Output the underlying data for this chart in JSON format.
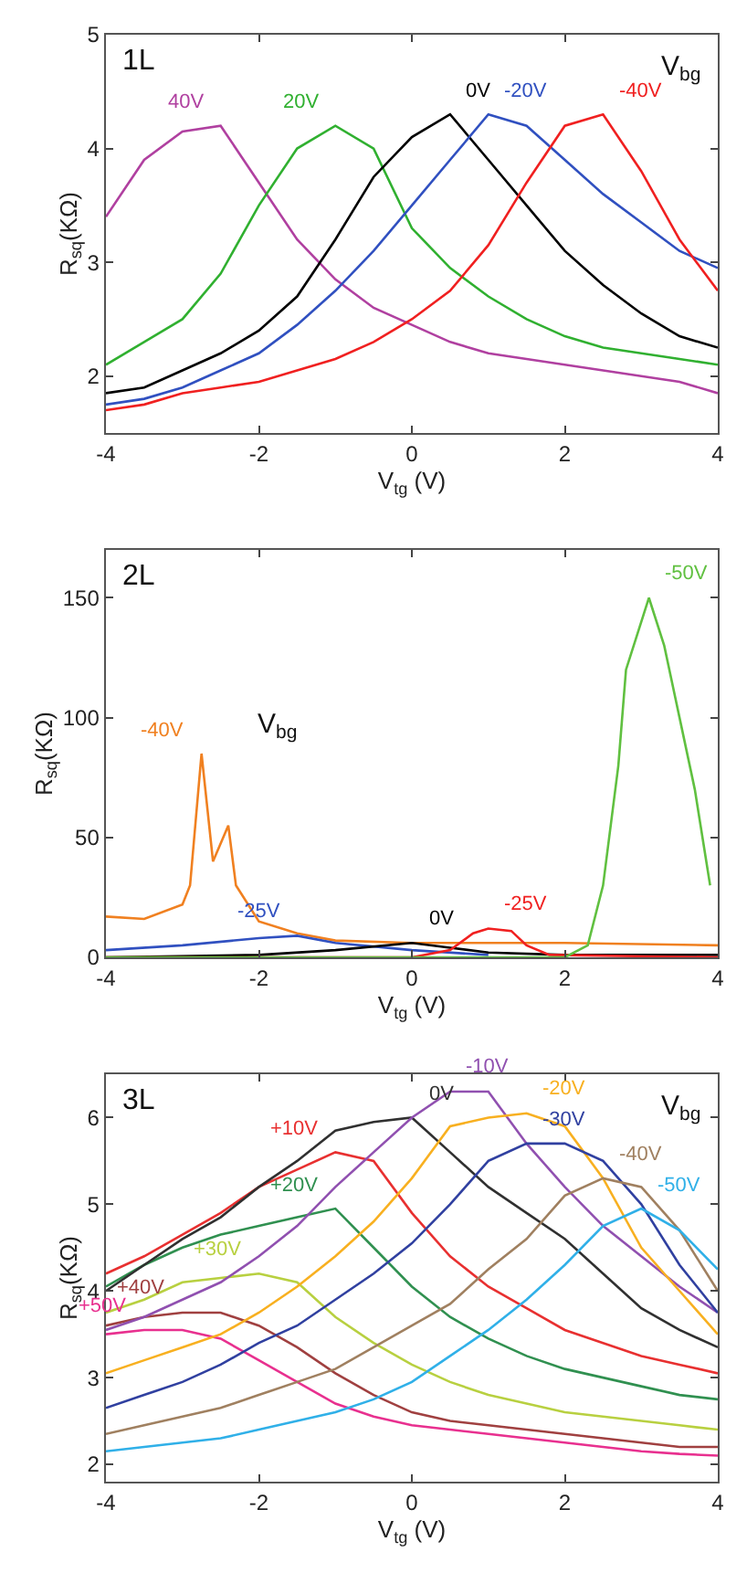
{
  "chart_data": [
    {
      "type": "line",
      "title": "1L",
      "legend_title": "V$_{bg}$",
      "xlabel": "V$_{tg}$ (V)",
      "ylabel": "R$_{sq}$(KΩ)",
      "legend": false,
      "grid": false,
      "x": [
        -4,
        -3.5,
        -3,
        -2.5,
        -2,
        -1.5,
        -1,
        -0.5,
        0,
        0.5,
        1,
        1.5,
        2,
        2.5,
        3,
        3.5,
        4
      ],
      "xlim": [
        -4,
        4
      ],
      "xticks": [
        -4,
        -2,
        0,
        2,
        4
      ],
      "ylim": [
        1.5,
        5
      ],
      "yticks": [
        2,
        3,
        4,
        5
      ],
      "series": [
        {
          "name": "40V",
          "color": "#b040a0",
          "values": [
            3.4,
            3.9,
            4.15,
            4.2,
            3.7,
            3.2,
            2.85,
            2.6,
            2.45,
            2.3,
            2.2,
            2.15,
            2.1,
            2.05,
            2.0,
            1.95,
            1.85
          ]
        },
        {
          "name": "20V",
          "color": "#30b030",
          "values": [
            2.1,
            2.3,
            2.5,
            2.9,
            3.5,
            4.0,
            4.2,
            4.0,
            3.3,
            2.95,
            2.7,
            2.5,
            2.35,
            2.25,
            2.2,
            2.15,
            2.1
          ]
        },
        {
          "name": "0V",
          "color": "#000000",
          "values": [
            1.85,
            1.9,
            2.05,
            2.2,
            2.4,
            2.7,
            3.2,
            3.75,
            4.1,
            4.3,
            3.9,
            3.5,
            3.1,
            2.8,
            2.55,
            2.35,
            2.25
          ]
        },
        {
          "name": "-20V",
          "color": "#3050c0",
          "values": [
            1.75,
            1.8,
            1.9,
            2.05,
            2.2,
            2.45,
            2.75,
            3.1,
            3.5,
            3.9,
            4.3,
            4.2,
            3.9,
            3.6,
            3.35,
            3.1,
            2.95
          ]
        },
        {
          "name": "-40V",
          "color": "#f02020",
          "values": [
            1.7,
            1.75,
            1.85,
            1.9,
            1.95,
            2.05,
            2.15,
            2.3,
            2.5,
            2.75,
            3.15,
            3.7,
            4.2,
            4.3,
            3.8,
            3.2,
            2.75
          ]
        }
      ]
    },
    {
      "type": "line",
      "title": "2L",
      "legend_title": "V$_{bg}$",
      "xlabel": "V$_{tg}$ (V)",
      "ylabel": "R$_{sq}$(KΩ)",
      "legend": false,
      "grid": false,
      "xlim": [
        -4,
        4
      ],
      "xticks": [
        -4,
        -2,
        0,
        2,
        4
      ],
      "ylim": [
        0,
        170
      ],
      "yticks": [
        0,
        50,
        100,
        150
      ],
      "series": [
        {
          "name": "-40V",
          "color": "#f08020",
          "x": [
            -4,
            -3.5,
            -3,
            -2.9,
            -2.75,
            -2.6,
            -2.4,
            -2.3,
            -2,
            -1.5,
            -1,
            0,
            2,
            4
          ],
          "values": [
            17,
            16,
            22,
            30,
            85,
            40,
            55,
            30,
            15,
            10,
            7,
            6,
            6,
            5
          ]
        },
        {
          "name": "-25V",
          "color": "#3050c0",
          "x": [
            -4,
            -3,
            -2,
            -1.5,
            -1,
            0,
            1
          ],
          "values": [
            3,
            5,
            8,
            9,
            6,
            3,
            1
          ]
        },
        {
          "name": "0V",
          "color": "#000000",
          "x": [
            -4,
            -2,
            -1,
            0,
            0.5,
            1,
            2,
            4
          ],
          "values": [
            0,
            1,
            3,
            6,
            4,
            2,
            1,
            1
          ]
        },
        {
          "name": "-25V",
          "color": "#f02020",
          "x": [
            -4,
            0,
            0.5,
            0.8,
            1,
            1.3,
            1.5,
            1.8,
            4
          ],
          "values": [
            0,
            0,
            3,
            10,
            12,
            11,
            5,
            1,
            0
          ]
        },
        {
          "name": "-50V",
          "color": "#60c040",
          "x": [
            -4,
            2,
            2.3,
            2.5,
            2.7,
            2.8,
            3,
            3.1,
            3.3,
            3.5,
            3.7,
            3.9
          ],
          "values": [
            0,
            0,
            5,
            30,
            80,
            120,
            140,
            150,
            130,
            100,
            70,
            30
          ]
        }
      ]
    },
    {
      "type": "line",
      "title": "3L",
      "legend_title": "V$_{bg}$",
      "xlabel": "V$_{tg}$ (V)",
      "ylabel": "R$_{sq}$(KΩ)",
      "legend": false,
      "grid": false,
      "x": [
        -4,
        -3.5,
        -3,
        -2.5,
        -2,
        -1.5,
        -1,
        -0.5,
        0,
        0.5,
        1,
        1.5,
        2,
        2.5,
        3,
        3.5,
        4
      ],
      "xlim": [
        -4,
        4
      ],
      "xticks": [
        -4,
        -2,
        0,
        2,
        4
      ],
      "ylim": [
        1.8,
        6.5
      ],
      "yticks": [
        2,
        3,
        4,
        5,
        6
      ],
      "series": [
        {
          "name": "+50V",
          "color": "#e8308f",
          "values": [
            3.5,
            3.55,
            3.55,
            3.45,
            3.2,
            2.95,
            2.7,
            2.55,
            2.45,
            2.4,
            2.35,
            2.3,
            2.25,
            2.2,
            2.15,
            2.12,
            2.1
          ]
        },
        {
          "name": "+40V",
          "color": "#a04040",
          "values": [
            3.6,
            3.7,
            3.75,
            3.75,
            3.6,
            3.35,
            3.05,
            2.8,
            2.6,
            2.5,
            2.45,
            2.4,
            2.35,
            2.3,
            2.25,
            2.2,
            2.2
          ]
        },
        {
          "name": "+30V",
          "color": "#b8d040",
          "values": [
            3.75,
            3.9,
            4.1,
            4.15,
            4.2,
            4.1,
            3.7,
            3.4,
            3.15,
            2.95,
            2.8,
            2.7,
            2.6,
            2.55,
            2.5,
            2.45,
            2.4
          ]
        },
        {
          "name": "+20V",
          "color": "#309050",
          "values": [
            4.05,
            4.3,
            4.5,
            4.65,
            4.75,
            4.85,
            4.95,
            4.5,
            4.05,
            3.7,
            3.45,
            3.25,
            3.1,
            3.0,
            2.9,
            2.8,
            2.75
          ]
        },
        {
          "name": "+10V",
          "color": "#e83030",
          "values": [
            4.2,
            4.4,
            4.65,
            4.9,
            5.2,
            5.4,
            5.6,
            5.5,
            4.9,
            4.4,
            4.05,
            3.8,
            3.55,
            3.4,
            3.25,
            3.15,
            3.05
          ]
        },
        {
          "name": "0V",
          "color": "#303030",
          "values": [
            4.0,
            4.3,
            4.6,
            4.85,
            5.2,
            5.5,
            5.85,
            5.95,
            6.0,
            5.6,
            5.2,
            4.9,
            4.6,
            4.2,
            3.8,
            3.55,
            3.35
          ]
        },
        {
          "name": "-10V",
          "color": "#9050b0",
          "values": [
            3.55,
            3.7,
            3.9,
            4.1,
            4.4,
            4.75,
            5.2,
            5.6,
            6.0,
            6.3,
            6.3,
            5.7,
            5.2,
            4.75,
            4.4,
            4.05,
            3.75
          ]
        },
        {
          "name": "-20V",
          "color": "#f8b020",
          "values": [
            3.05,
            3.2,
            3.35,
            3.5,
            3.75,
            4.05,
            4.4,
            4.8,
            5.3,
            5.9,
            6.0,
            6.05,
            5.9,
            5.3,
            4.5,
            4.0,
            3.5
          ]
        },
        {
          "name": "-30V",
          "color": "#3040a0",
          "values": [
            2.65,
            2.8,
            2.95,
            3.15,
            3.4,
            3.6,
            3.9,
            4.2,
            4.55,
            5.0,
            5.5,
            5.7,
            5.7,
            5.5,
            5.0,
            4.3,
            3.75
          ]
        },
        {
          "name": "-40V",
          "color": "#a08060",
          "values": [
            2.35,
            2.45,
            2.55,
            2.65,
            2.8,
            2.95,
            3.1,
            3.35,
            3.6,
            3.85,
            4.25,
            4.6,
            5.1,
            5.3,
            5.2,
            4.7,
            4.0
          ]
        },
        {
          "name": "-50V",
          "color": "#30b0e8",
          "values": [
            2.15,
            2.2,
            2.25,
            2.3,
            2.4,
            2.5,
            2.6,
            2.75,
            2.95,
            3.25,
            3.55,
            3.9,
            4.3,
            4.75,
            4.95,
            4.7,
            4.25
          ]
        }
      ]
    }
  ]
}
